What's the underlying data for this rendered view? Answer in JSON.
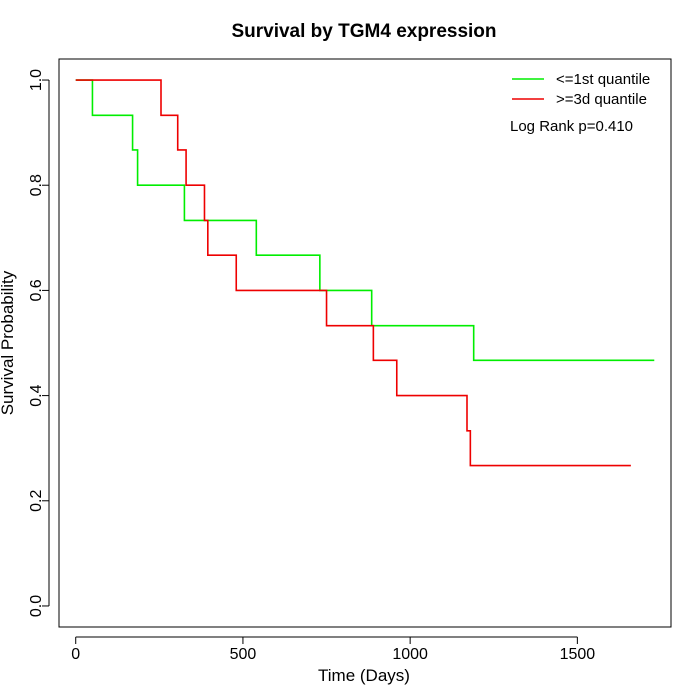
{
  "chart_data": {
    "type": "line",
    "title": "Survival by TGM4 expression",
    "xlabel": "Time (Days)",
    "ylabel": "Survival Probability",
    "xlim": [
      -50,
      1780
    ],
    "ylim": [
      -0.04,
      1.04
    ],
    "x_ticks": [
      0,
      500,
      1000,
      1500
    ],
    "y_ticks": [
      0.0,
      0.2,
      0.4,
      0.6,
      0.8,
      1.0
    ],
    "y_tick_labels": [
      "0.0",
      "0.2",
      "0.4",
      "0.6",
      "0.8",
      "1.0"
    ],
    "legend_position": "top-right",
    "annotation": "Log Rank p=0.410",
    "grid": false,
    "series": [
      {
        "name": "<=1st quantile",
        "color": "#00ee00",
        "step": true,
        "x": [
          0,
          50,
          170,
          185,
          325,
          540,
          730,
          885,
          1190,
          1730
        ],
        "y": [
          1.0,
          0.933,
          0.867,
          0.8,
          0.733,
          0.667,
          0.6,
          0.533,
          0.467,
          0.467
        ]
      },
      {
        "name": ">=3d quantile",
        "color": "#ee0000",
        "step": true,
        "x": [
          0,
          255,
          305,
          330,
          385,
          395,
          480,
          750,
          890,
          960,
          1170,
          1180,
          1660
        ],
        "y": [
          1.0,
          0.933,
          0.867,
          0.8,
          0.733,
          0.667,
          0.6,
          0.533,
          0.467,
          0.4,
          0.333,
          0.267,
          0.267
        ]
      }
    ]
  }
}
